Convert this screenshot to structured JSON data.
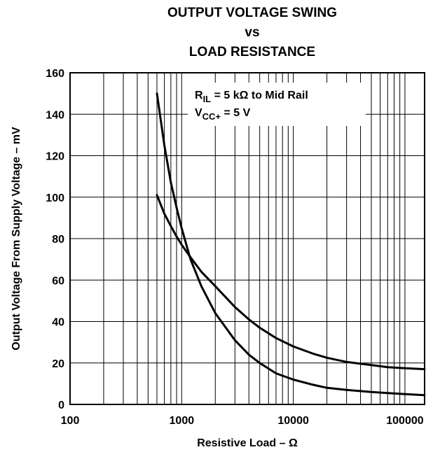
{
  "chart_data": {
    "type": "line",
    "title_lines": [
      "OUTPUT VOLTAGE SWING",
      "vs",
      "LOAD RESISTANCE"
    ],
    "xlabel": "Resistive Load – Ω",
    "ylabel": "Output Voltage From Supply Voltage – mV",
    "x_scale": "log",
    "xlim": [
      100,
      150000
    ],
    "ylim": [
      0,
      160
    ],
    "x_ticks": [
      100,
      1000,
      10000,
      100000
    ],
    "x_tick_labels": [
      "100",
      "1000",
      "10000",
      "100000"
    ],
    "y_ticks": [
      0,
      20,
      40,
      60,
      80,
      100,
      120,
      140,
      160
    ],
    "y_tick_labels": [
      "0",
      "20",
      "40",
      "60",
      "80",
      "100",
      "120",
      "140",
      "160"
    ],
    "grid": true,
    "annotation": {
      "line1_main": "R",
      "line1_sub": "IL",
      "line1_rest": " = 5 kΩ to Mid Rail",
      "line2_main": "V",
      "line2_sub": "CC+",
      "line2_rest": " = 5 V"
    },
    "series": [
      {
        "x": [
          600,
          700,
          800,
          900,
          1000,
          1200,
          1500,
          2000,
          3000,
          4000,
          5000,
          7000,
          10000,
          15000,
          20000,
          30000,
          50000,
          70000,
          100000,
          150000
        ],
        "values": [
          150,
          125,
          107,
          95,
          85,
          70,
          57,
          44,
          31,
          24,
          20,
          15,
          12,
          9.5,
          8,
          7,
          6,
          5.5,
          5,
          4.5
        ]
      },
      {
        "x": [
          600,
          700,
          800,
          900,
          1000,
          1200,
          1500,
          2000,
          3000,
          4000,
          5000,
          7000,
          10000,
          15000,
          20000,
          30000,
          50000,
          70000,
          100000,
          150000
        ],
        "values": [
          101,
          92,
          86,
          81,
          77,
          71,
          64,
          57,
          47,
          41,
          37,
          32,
          28,
          24.5,
          22.5,
          20.5,
          19,
          18,
          17.5,
          17
        ]
      }
    ]
  }
}
